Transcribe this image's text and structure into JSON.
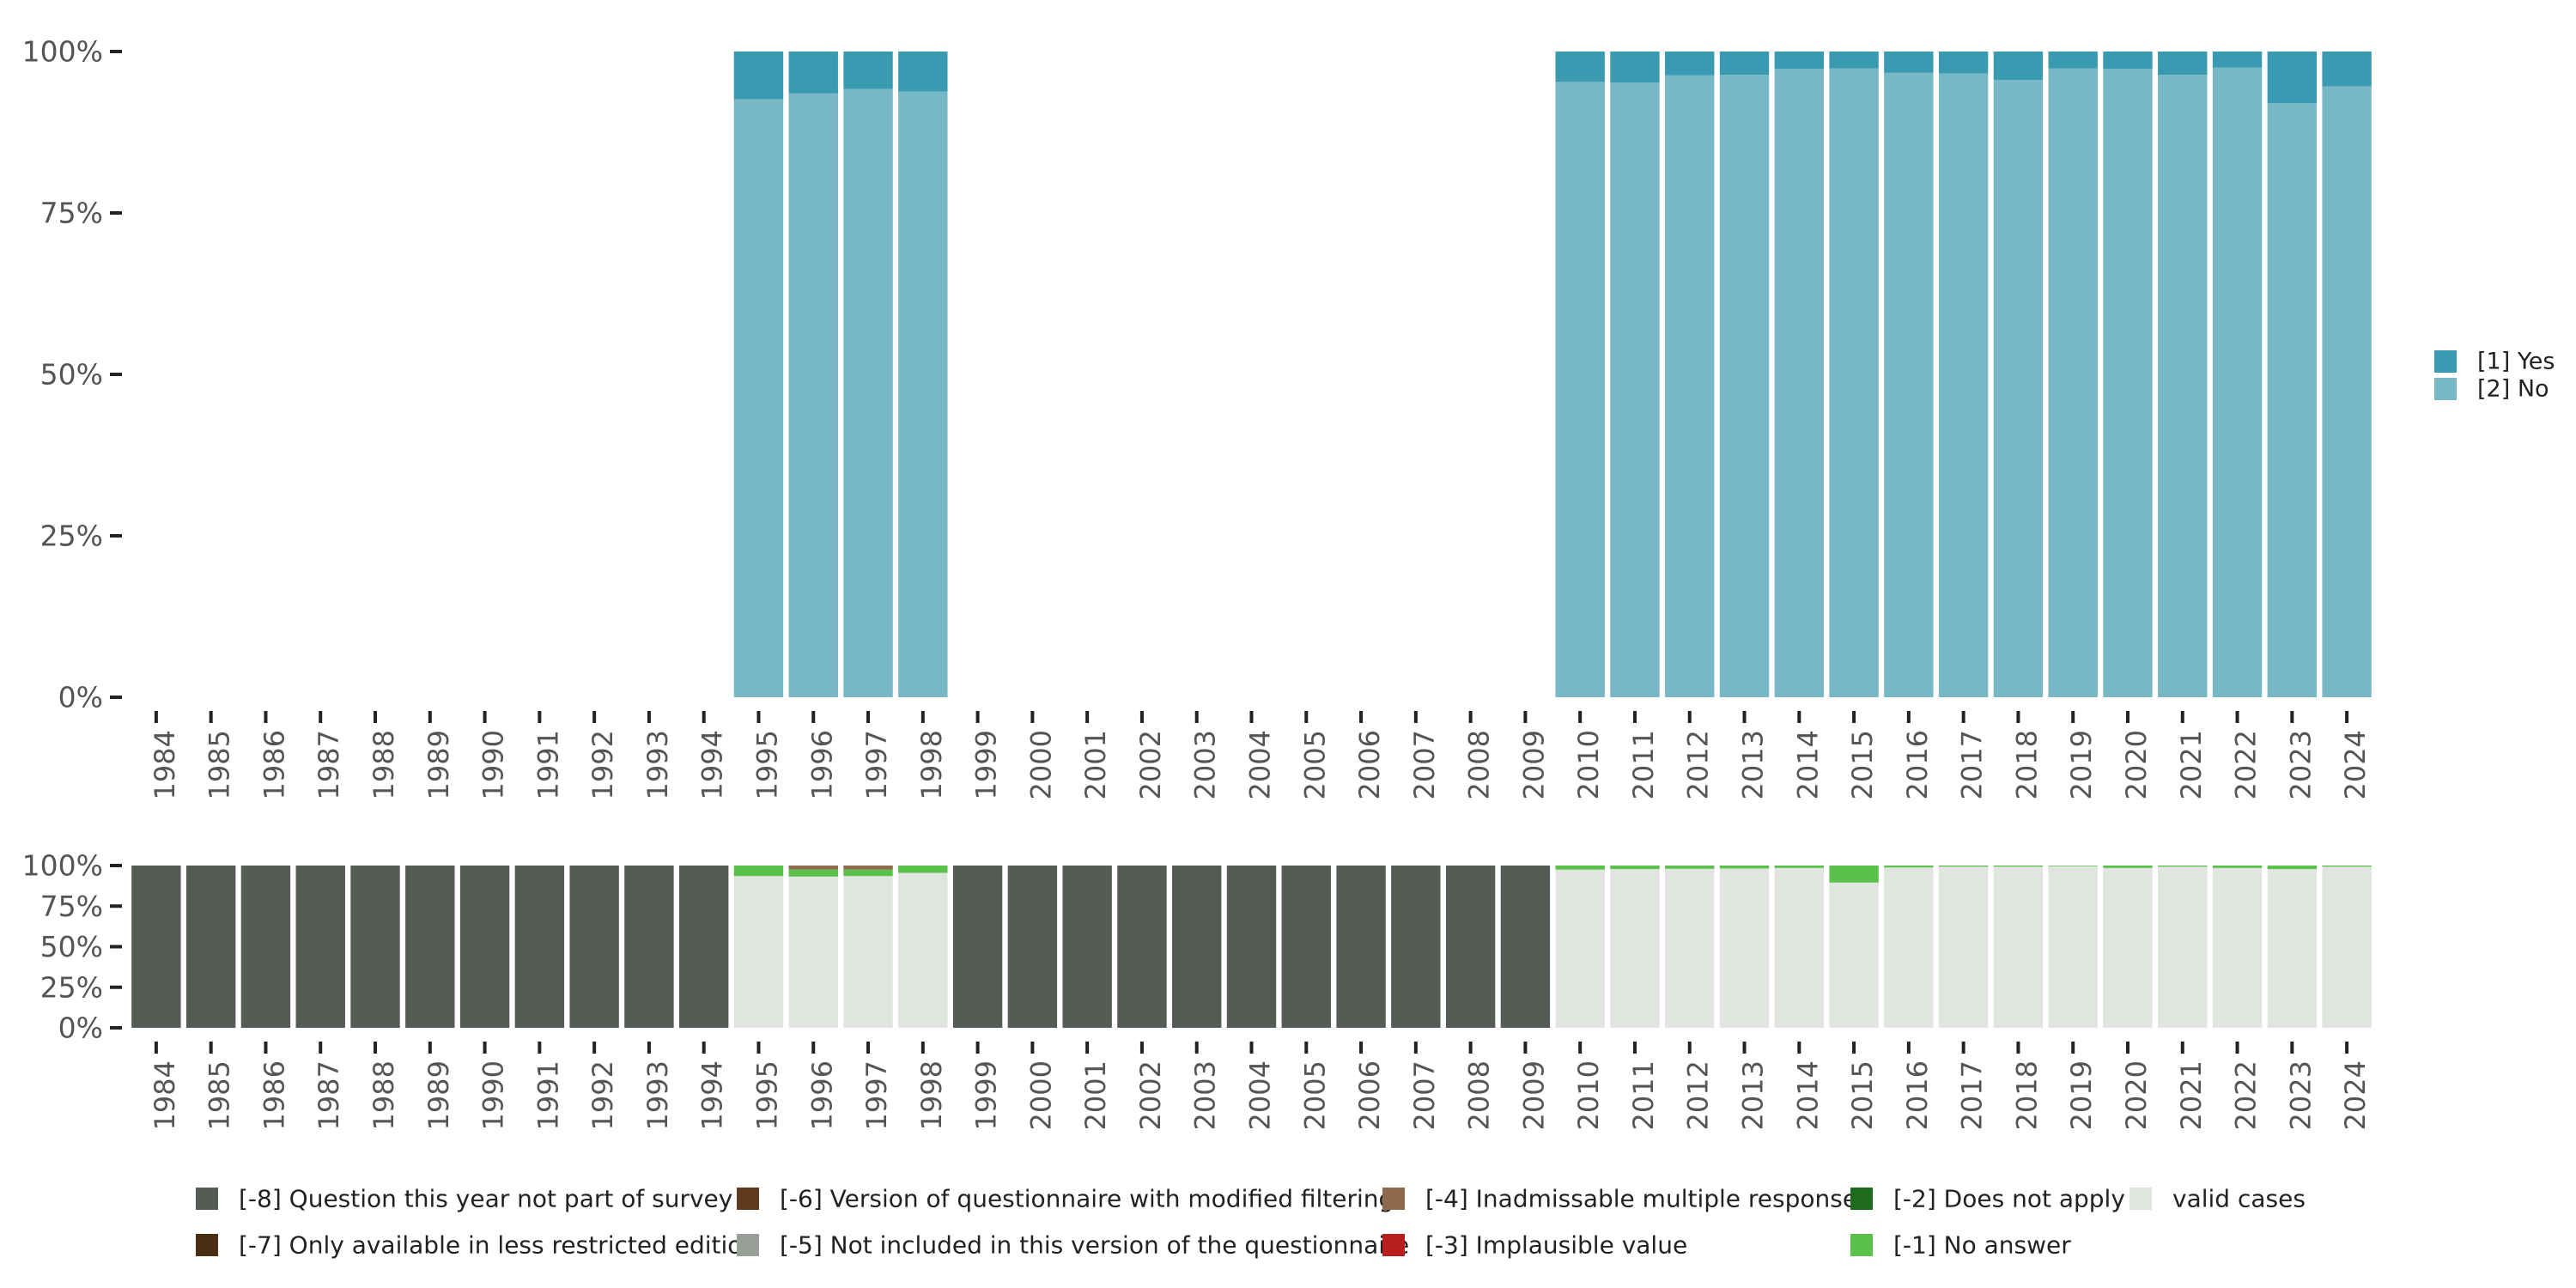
{
  "chart_data": [
    {
      "type": "bar",
      "stacked": true,
      "name": "main",
      "categories": [
        "1984",
        "1985",
        "1986",
        "1987",
        "1988",
        "1989",
        "1990",
        "1991",
        "1992",
        "1993",
        "1994",
        "1995",
        "1996",
        "1997",
        "1998",
        "1999",
        "2000",
        "2001",
        "2002",
        "2003",
        "2004",
        "2005",
        "2006",
        "2007",
        "2008",
        "2009",
        "2010",
        "2011",
        "2012",
        "2013",
        "2014",
        "2015",
        "2016",
        "2017",
        "2018",
        "2019",
        "2020",
        "2021",
        "2022",
        "2023",
        "2024"
      ],
      "y_ticks": [
        "0%",
        "25%",
        "50%",
        "75%",
        "100%"
      ],
      "ylim": [
        0,
        100
      ],
      "legend_position": "right",
      "series": [
        {
          "name": "[2] No",
          "color": "#78b7c5",
          "values": [
            null,
            null,
            null,
            null,
            null,
            null,
            null,
            null,
            null,
            null,
            null,
            92.6,
            93.5,
            94.2,
            93.8,
            null,
            null,
            null,
            null,
            null,
            null,
            null,
            null,
            null,
            null,
            null,
            95.3,
            95.2,
            96.3,
            96.4,
            97.3,
            97.4,
            96.7,
            96.6,
            95.6,
            97.4,
            97.3,
            96.4,
            97.5,
            92.0,
            94.6
          ]
        },
        {
          "name": "[1] Yes",
          "color": "#3a9ab2",
          "values": [
            null,
            null,
            null,
            null,
            null,
            null,
            null,
            null,
            null,
            null,
            null,
            7.4,
            6.5,
            5.8,
            6.2,
            null,
            null,
            null,
            null,
            null,
            null,
            null,
            null,
            null,
            null,
            null,
            4.7,
            4.8,
            3.7,
            3.6,
            2.7,
            2.6,
            3.3,
            3.4,
            4.4,
            2.6,
            2.7,
            3.6,
            2.5,
            8.0,
            5.4
          ]
        }
      ]
    },
    {
      "type": "bar",
      "stacked": true,
      "name": "missing",
      "categories": [
        "1984",
        "1985",
        "1986",
        "1987",
        "1988",
        "1989",
        "1990",
        "1991",
        "1992",
        "1993",
        "1994",
        "1995",
        "1996",
        "1997",
        "1998",
        "1999",
        "2000",
        "2001",
        "2002",
        "2003",
        "2004",
        "2005",
        "2006",
        "2007",
        "2008",
        "2009",
        "2010",
        "2011",
        "2012",
        "2013",
        "2014",
        "2015",
        "2016",
        "2017",
        "2018",
        "2019",
        "2020",
        "2021",
        "2022",
        "2023",
        "2024"
      ],
      "y_ticks": [
        "0%",
        "25%",
        "50%",
        "75%",
        "100%"
      ],
      "ylim": [
        0,
        100
      ],
      "legend_position": "bottom",
      "series": [
        {
          "name": "valid cases",
          "color": "#e1e5e0",
          "values": [
            0,
            0,
            0,
            0,
            0,
            0,
            0,
            0,
            0,
            0,
            0,
            93.5,
            93.2,
            93.5,
            95.5,
            0,
            0,
            0,
            0,
            0,
            0,
            0,
            0,
            0,
            0,
            0,
            97.5,
            97.8,
            98.0,
            98.2,
            98.5,
            89.5,
            98.8,
            99.3,
            99.3,
            99.6,
            98.5,
            99.3,
            98.5,
            97.8,
            99.3
          ]
        },
        {
          "name": "[-1] No answer",
          "color": "#5ac14a",
          "values": [
            0,
            0,
            0,
            0,
            0,
            0,
            0,
            0,
            0,
            0,
            0,
            6.5,
            4.3,
            4.0,
            4.5,
            0,
            0,
            0,
            0,
            0,
            0,
            0,
            0,
            0,
            0,
            0,
            2.5,
            2.2,
            2.0,
            1.8,
            1.5,
            10.5,
            1.2,
            0.7,
            0.7,
            0.4,
            1.5,
            0.7,
            1.5,
            2.2,
            0.7
          ]
        },
        {
          "name": "[-4] Inadmissable multiple response",
          "color": "#8c6a4a",
          "values": [
            0,
            0,
            0,
            0,
            0,
            0,
            0,
            0,
            0,
            0,
            0,
            0,
            2.5,
            2.5,
            0,
            0,
            0,
            0,
            0,
            0,
            0,
            0,
            0,
            0,
            0,
            0,
            0,
            0,
            0,
            0,
            0,
            0,
            0,
            0,
            0,
            0,
            0,
            0,
            0,
            0,
            0
          ]
        },
        {
          "name": "[-8] Question this year not part of survey",
          "color": "#555b55",
          "values": [
            100,
            100,
            100,
            100,
            100,
            100,
            100,
            100,
            100,
            100,
            100,
            0,
            0,
            0,
            0,
            100,
            100,
            100,
            100,
            100,
            100,
            100,
            100,
            100,
            100,
            100,
            0,
            0,
            0,
            0,
            0,
            0,
            0,
            0,
            0,
            0,
            0,
            0,
            0,
            0,
            0
          ]
        }
      ],
      "legend": [
        {
          "name": "[-8] Question this year not part of survey",
          "color": "#555b55"
        },
        {
          "name": "[-6] Version of questionnaire with modified filtering",
          "color": "#5e3a1a"
        },
        {
          "name": "[-4] Inadmissable multiple response",
          "color": "#8c6a4a"
        },
        {
          "name": "[-2] Does not apply",
          "color": "#1e6a1e"
        },
        {
          "name": "valid cases",
          "color": "#e1e5e0"
        },
        {
          "name": "[-7] Only available in less restricted edition",
          "color": "#4a2e14"
        },
        {
          "name": "[-5] Not included in this version of the questionnaire",
          "color": "#9a9e98"
        },
        {
          "name": "[-3] Implausible value",
          "color": "#b81e1e"
        },
        {
          "name": "[-1] No answer",
          "color": "#5ac14a"
        }
      ]
    }
  ]
}
